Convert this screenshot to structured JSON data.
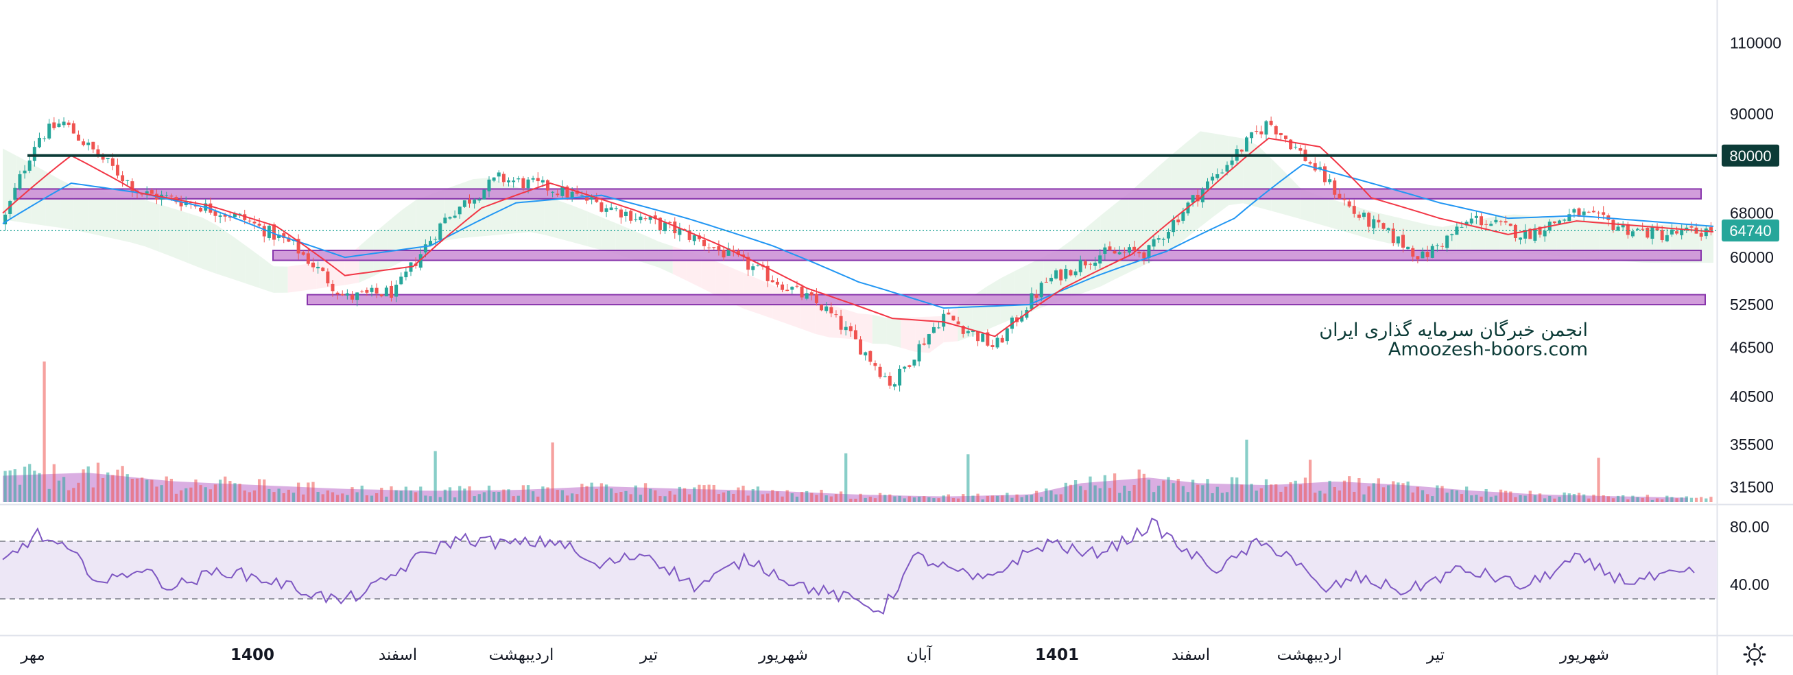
{
  "colors": {
    "candle_up": "#26a69a",
    "candle_down": "#ef5350",
    "ema_fast": "#f23645",
    "ema_slow": "#2196f3",
    "resistance_line": "#0c3b37",
    "zone_fill": "#ce93d8",
    "zone_border": "#7b1fa2",
    "rsi_line": "#7e57c2",
    "rsi_band": "#ede7f6",
    "volume_ma_fill": "#ce93d8",
    "last_price": "#26a69a",
    "cloud_bull": "#e8f5e9",
    "cloud_bear": "#ffebee"
  },
  "watermark": {
    "line1": "انجمن خبرگان سرمایه گذاری ایران",
    "line2": "Amoozesh-boors.com"
  },
  "price_axis": {
    "labels": [
      "110000",
      "90000",
      "68000",
      "60000",
      "52500",
      "46500",
      "40500",
      "35500",
      "31500"
    ],
    "resistance_tag": "80000",
    "last_price_tag": "64740"
  },
  "rsi_axis": {
    "labels": [
      "80.00",
      "40.00"
    ]
  },
  "time_axis": {
    "labels": [
      "مهر",
      "1400",
      "اسفند",
      "اردیبهشت",
      "تیر",
      "شهریور",
      "آبان",
      "1401",
      "اسفند",
      "اردیبهشت",
      "تیر",
      "شهریور"
    ]
  },
  "chart_data": {
    "type": "candlestick",
    "scale": "log",
    "price_ticks": [
      110000,
      90000,
      80000,
      68000,
      60000,
      52500,
      46500,
      40500,
      35500,
      31500
    ],
    "last_price": 64740,
    "horizontal_level": 80000,
    "zones": [
      {
        "low": 70800,
        "high": 72800
      },
      {
        "low": 59500,
        "high": 61200
      },
      {
        "low": 52500,
        "high": 54000
      }
    ],
    "price_path": {
      "t": [
        0,
        0.02,
        0.035,
        0.05,
        0.08,
        0.11,
        0.14,
        0.17,
        0.2,
        0.23,
        0.26,
        0.29,
        0.32,
        0.36,
        0.4,
        0.44,
        0.48,
        0.52,
        0.55,
        0.58,
        0.61,
        0.64,
        0.67,
        0.71,
        0.74,
        0.77,
        0.79,
        0.83,
        0.86,
        0.89,
        0.92,
        0.95,
        0.97,
        1
      ],
      "close": [
        66000,
        84000,
        88000,
        82000,
        72000,
        70000,
        67000,
        62000,
        53500,
        54500,
        67500,
        75000,
        73000,
        68500,
        64000,
        58000,
        52000,
        41800,
        51000,
        46500,
        56000,
        60500,
        61000,
        76000,
        88000,
        76000,
        68000,
        60000,
        67000,
        64000,
        68000,
        65000,
        64000,
        64740
      ]
    },
    "ema_fast_path": {
      "t": [
        0,
        0.04,
        0.08,
        0.12,
        0.16,
        0.2,
        0.24,
        0.28,
        0.32,
        0.37,
        0.42,
        0.47,
        0.52,
        0.55,
        0.58,
        0.62,
        0.66,
        0.7,
        0.74,
        0.77,
        0.8,
        0.84,
        0.88,
        0.92,
        0.96,
        1
      ],
      "value": [
        68000,
        80000,
        72000,
        69500,
        65500,
        57000,
        58500,
        69000,
        74000,
        68500,
        62000,
        55000,
        50500,
        50000,
        48000,
        55000,
        60500,
        71000,
        84000,
        82000,
        71000,
        67000,
        64000,
        66500,
        65500,
        64500
      ]
    },
    "ema_slow_path": {
      "t": [
        0,
        0.04,
        0.08,
        0.12,
        0.16,
        0.2,
        0.25,
        0.3,
        0.35,
        0.4,
        0.45,
        0.5,
        0.55,
        0.6,
        0.64,
        0.68,
        0.72,
        0.76,
        0.8,
        0.84,
        0.88,
        0.92,
        0.96,
        1
      ],
      "value": [
        66000,
        74000,
        72000,
        69000,
        64000,
        60000,
        62000,
        70000,
        71500,
        67000,
        62000,
        56000,
        52000,
        52500,
        57000,
        61000,
        67000,
        78000,
        74000,
        70000,
        67000,
        67500,
        66500,
        65500
      ]
    },
    "rsi": {
      "upper": 70,
      "lower": 30,
      "t": [
        0,
        0.02,
        0.04,
        0.06,
        0.08,
        0.1,
        0.13,
        0.16,
        0.18,
        0.2,
        0.22,
        0.25,
        0.27,
        0.3,
        0.33,
        0.35,
        0.38,
        0.41,
        0.44,
        0.47,
        0.5,
        0.52,
        0.54,
        0.56,
        0.58,
        0.6,
        0.62,
        0.64,
        0.66,
        0.68,
        0.7,
        0.72,
        0.74,
        0.76,
        0.78,
        0.8,
        0.83,
        0.86,
        0.88,
        0.9,
        0.93,
        0.96,
        1
      ],
      "value": [
        55,
        75,
        62,
        40,
        52,
        38,
        50,
        42,
        35,
        28,
        38,
        62,
        72,
        68,
        70,
        52,
        62,
        38,
        58,
        40,
        30,
        22,
        60,
        50,
        42,
        58,
        70,
        60,
        68,
        82,
        62,
        50,
        68,
        62,
        35,
        45,
        35,
        50,
        46,
        38,
        58,
        42,
        48
      ]
    },
    "volume_ma": {
      "t": [
        0,
        0.05,
        0.1,
        0.15,
        0.2,
        0.25,
        0.3,
        0.35,
        0.4,
        0.45,
        0.5,
        0.55,
        0.6,
        0.63,
        0.67,
        0.7,
        0.74,
        0.78,
        0.82,
        0.86,
        0.9,
        0.95,
        1
      ],
      "value": [
        0.7,
        0.78,
        0.55,
        0.45,
        0.35,
        0.3,
        0.32,
        0.42,
        0.35,
        0.3,
        0.2,
        0.15,
        0.2,
        0.5,
        0.65,
        0.5,
        0.45,
        0.55,
        0.45,
        0.3,
        0.2,
        0.15,
        0.1
      ]
    }
  }
}
